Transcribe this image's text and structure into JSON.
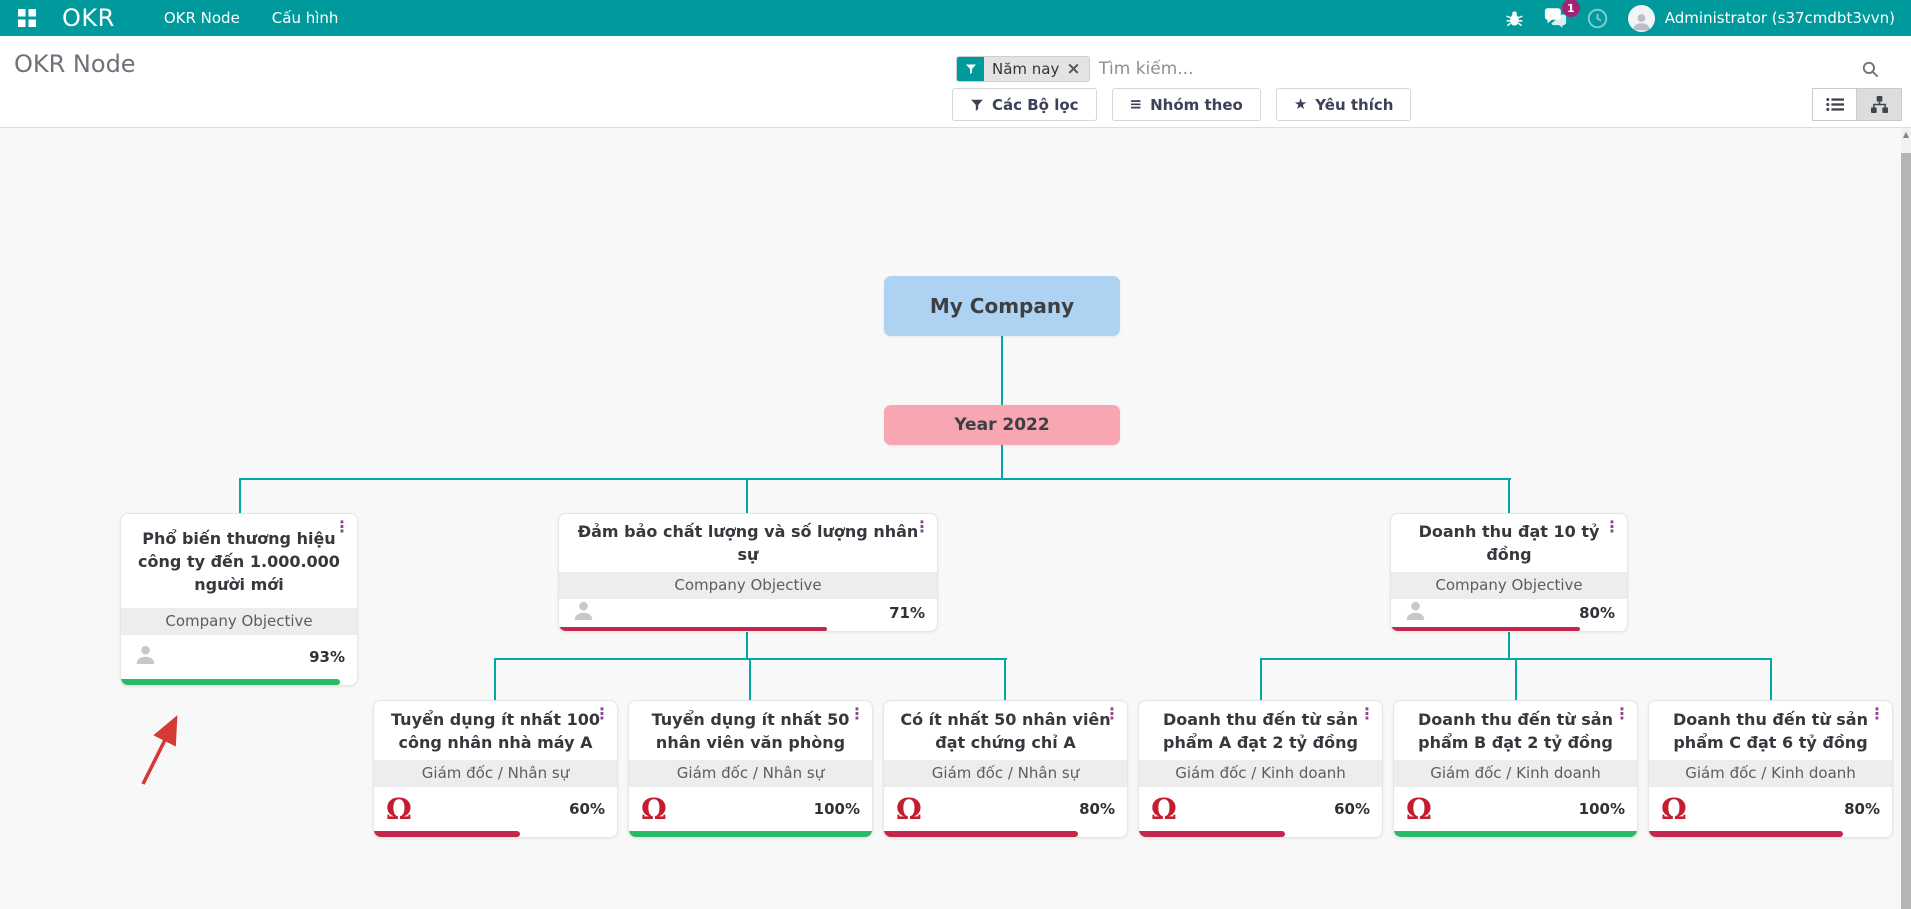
{
  "navbar": {
    "brand": "OKR",
    "menu_items": [
      {
        "label": "OKR Node"
      },
      {
        "label": "Cấu hình"
      }
    ],
    "notification_count": "1",
    "user_name": "Administrator (s37cmdbt3vvn)"
  },
  "control_panel": {
    "breadcrumb": "OKR Node",
    "search_facet": "Năm nay",
    "search_placeholder": "Tìm kiếm...",
    "filter_button": "Các Bộ lọc",
    "groupby_button": "Nhóm theo",
    "favorites_button": "Yêu thích"
  },
  "hierarchy": {
    "company": {
      "label": "My Company"
    },
    "period": {
      "label": "Year 2022"
    },
    "objectives": [
      {
        "title": "Phổ biến thương hiệu công ty đến 1.000.000 người mới",
        "type_label": "Company Objective",
        "percent_label": "93%",
        "progress": 93,
        "status": "green"
      },
      {
        "title": "Đảm bảo chất lượng và số lượng nhân sự",
        "type_label": "Company Objective",
        "percent_label": "71%",
        "progress": 71,
        "status": "red"
      },
      {
        "title": "Doanh thu đạt 10 tỷ đồng",
        "type_label": "Company Objective",
        "percent_label": "80%",
        "progress": 80,
        "status": "red"
      }
    ],
    "key_results": [
      {
        "title": "Tuyển dụng ít nhất 100 công nhân nhà máy A",
        "owner_label": "Giám đốc / Nhân sự",
        "percent_label": "60%",
        "progress": 60,
        "status": "red"
      },
      {
        "title": "Tuyển dụng ít nhất 50 nhân viên văn phòng",
        "owner_label": "Giám đốc / Nhân sự",
        "percent_label": "100%",
        "progress": 100,
        "status": "green"
      },
      {
        "title": "Có ít nhất 50 nhân viên đạt chứng chỉ A",
        "owner_label": "Giám đốc / Nhân sự",
        "percent_label": "80%",
        "progress": 80,
        "status": "red"
      },
      {
        "title": "Doanh thu đến từ sản phẩm A đạt 2 tỷ đồng",
        "owner_label": "Giám đốc / Kinh doanh",
        "percent_label": "60%",
        "progress": 60,
        "status": "red"
      },
      {
        "title": "Doanh thu đến từ sản phẩm B đạt 2 tỷ đồng",
        "owner_label": "Giám đốc / Kinh doanh",
        "percent_label": "100%",
        "progress": 100,
        "status": "green"
      },
      {
        "title": "Doanh thu đến từ sản phẩm C đạt 6 tỷ đồng",
        "owner_label": "Giám đốc / Kinh doanh",
        "percent_label": "80%",
        "progress": 80,
        "status": "red"
      }
    ]
  },
  "colors": {
    "navbar_teal": "#00999c",
    "connector_teal": "#00a9a4",
    "company_node_blue": "#aed3f2",
    "period_node_pink": "#f7a6b2",
    "progress_green": "#28ba64",
    "progress_red": "#c3274b",
    "avatar_red": "#c51d30",
    "kebab_purple": "#8f4590",
    "badge_magenta": "#a5246f",
    "annotation_red": "#d43a36"
  }
}
